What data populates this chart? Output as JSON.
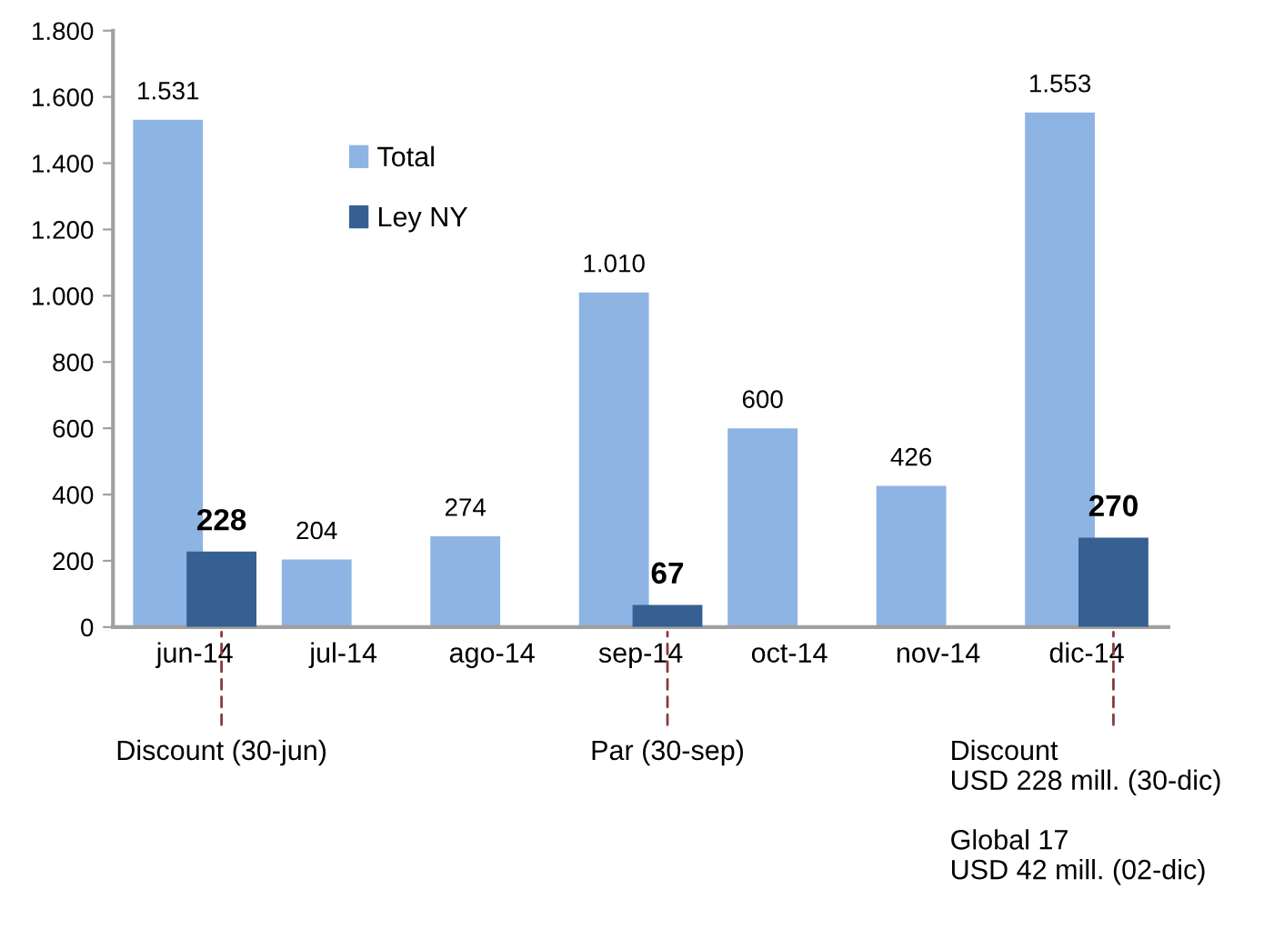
{
  "chart_data": {
    "type": "bar",
    "categories": [
      "jun-14",
      "jul-14",
      "ago-14",
      "sep-14",
      "oct-14",
      "nov-14",
      "dic-14"
    ],
    "series": [
      {
        "name": "Total",
        "color": "#8eb4e3",
        "values": [
          1531,
          204,
          274,
          1010,
          600,
          426,
          1553
        ],
        "value_labels": [
          "1.531",
          "204",
          "274",
          "1.010",
          "600",
          "426",
          "1.553"
        ]
      },
      {
        "name": "Ley NY",
        "color": "#366092",
        "values": [
          228,
          null,
          null,
          67,
          null,
          null,
          270
        ],
        "value_labels": [
          "228",
          null,
          null,
          "67",
          null,
          null,
          "270"
        ]
      }
    ],
    "ylim": [
      0,
      1800
    ],
    "yticks": [
      {
        "value": 0,
        "label": "0"
      },
      {
        "value": 200,
        "label": "200"
      },
      {
        "value": 400,
        "label": "400"
      },
      {
        "value": 600,
        "label": "600"
      },
      {
        "value": 800,
        "label": "800"
      },
      {
        "value": 1000,
        "label": "1.000"
      },
      {
        "value": 1200,
        "label": "1.200"
      },
      {
        "value": 1400,
        "label": "1.400"
      },
      {
        "value": 1600,
        "label": "1.600"
      },
      {
        "value": 1800,
        "label": "1.800"
      }
    ],
    "annotations": [
      "Discount (30-jun)",
      "Par (30-sep)",
      "Discount",
      "USD 228 mill. (30-dic)",
      "Global 17",
      "USD 42 mill. (02-dic)"
    ],
    "legend": "top left",
    "grid": false
  }
}
